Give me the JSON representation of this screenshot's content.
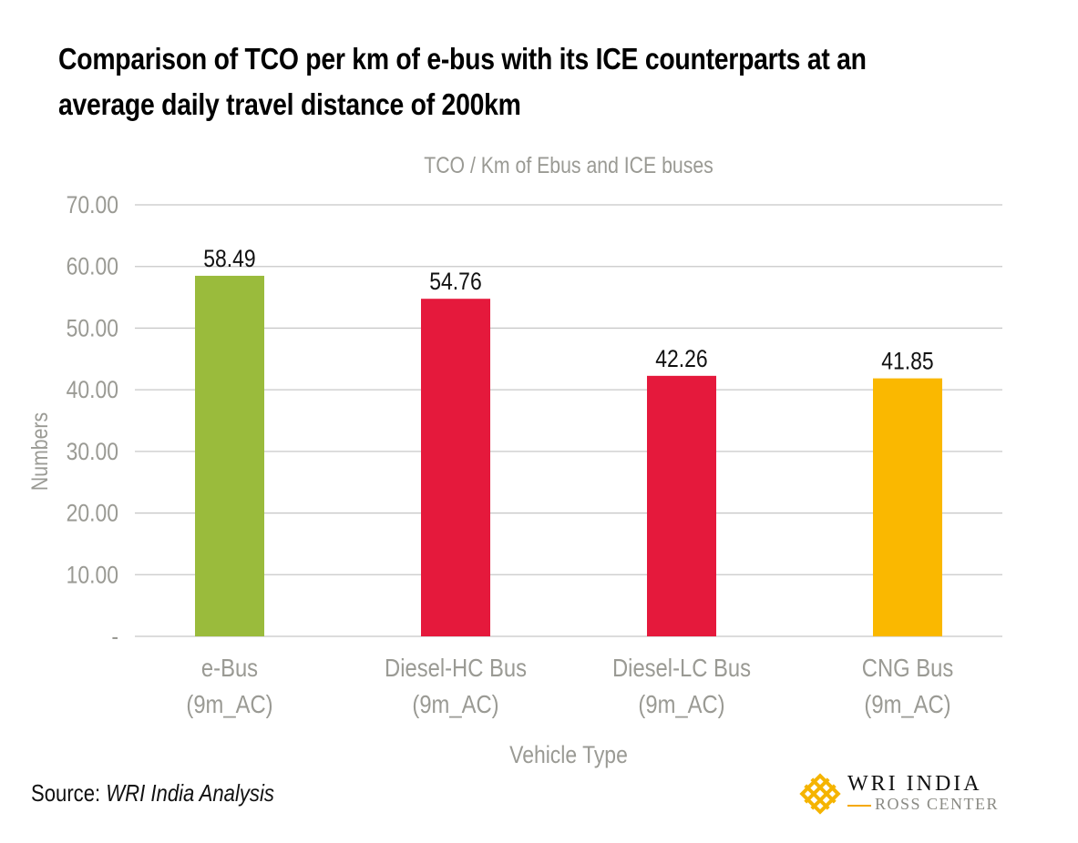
{
  "title": "Comparison of TCO per km of e-bus with its ICE counterparts at an average daily travel distance of 200km",
  "source": {
    "label": "Source: ",
    "value": "WRI India Analysis"
  },
  "logo": {
    "line1": "WRI INDIA",
    "line2": "ROSS CENTER",
    "color": "#f5b400"
  },
  "chart_data": {
    "type": "bar",
    "title": "TCO / Km of Ebus and ICE buses",
    "xlabel": "Vehicle Type",
    "ylabel": "Numbers",
    "ylim": [
      0,
      70
    ],
    "yticks": [
      "-",
      "10.00",
      "20.00",
      "30.00",
      "40.00",
      "50.00",
      "60.00",
      "70.00"
    ],
    "grid": true,
    "categories": [
      [
        "e-Bus",
        "(9m_AC)"
      ],
      [
        "Diesel-HC Bus",
        "(9m_AC)"
      ],
      [
        "Diesel-LC Bus",
        "(9m_AC)"
      ],
      [
        "CNG Bus",
        "(9m_AC)"
      ]
    ],
    "values": [
      58.49,
      54.76,
      42.26,
      41.85
    ],
    "data_labels": [
      "58.49",
      "54.76",
      "42.26",
      "41.85"
    ],
    "colors": [
      "#9abb3c",
      "#e5193c",
      "#e5193c",
      "#fab800"
    ]
  }
}
